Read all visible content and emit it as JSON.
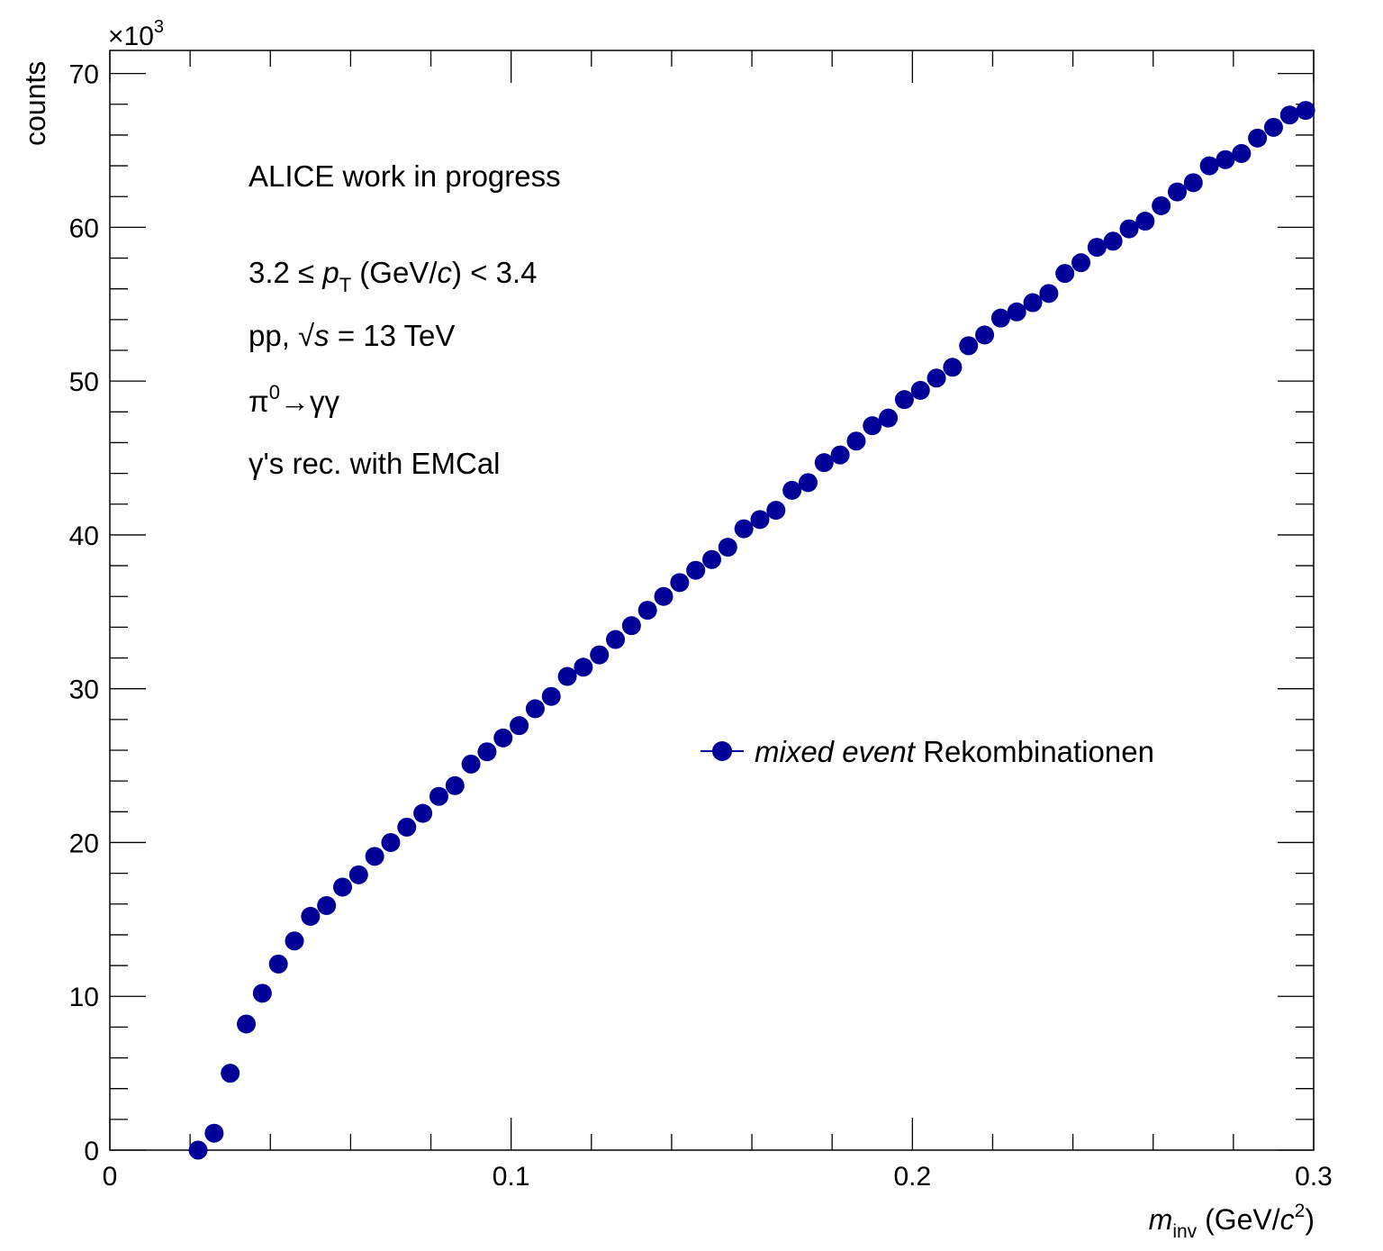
{
  "chart_data": {
    "type": "scatter",
    "xlabel": {
      "base": "m",
      "sub": "inv",
      "unit_open": " (GeV/",
      "unit_c": "c",
      "unit_exp": "2",
      "unit_close": ")"
    },
    "ylabel": "counts",
    "y_multiplier": {
      "times": "×10",
      "exp": "3"
    },
    "xlim": [
      0,
      0.3
    ],
    "ylim": [
      0,
      71.5
    ],
    "x_ticks": [
      "0",
      "0.1",
      "0.2",
      "0.3"
    ],
    "y_ticks": [
      "0",
      "10",
      "20",
      "30",
      "40",
      "50",
      "60",
      "70"
    ],
    "grid": false,
    "marker_color": "#000099",
    "annotations": {
      "line1": "ALICE work in progress",
      "pt": {
        "left": "3.2 ≤ ",
        "p": "p",
        "sub": "T",
        "right": " (GeV/",
        "c": "c",
        "end": ") < 3.4"
      },
      "energy": {
        "left": "pp, ",
        "sqrt": "√",
        "s": "s",
        "right": " = 13 TeV"
      },
      "decay": {
        "pi": "π",
        "sup": "0",
        "rest": "→γγ"
      },
      "line5": "γ's rec. with EMCal"
    },
    "legend": {
      "placement": "right-middle",
      "italic": "mixed event",
      "normal": " Rekombinationen"
    },
    "series": [
      {
        "x": [
          0.022,
          0.026,
          0.03,
          0.034,
          0.038,
          0.042,
          0.046,
          0.05,
          0.054,
          0.058,
          0.062,
          0.066,
          0.07,
          0.074,
          0.078,
          0.082,
          0.086,
          0.09,
          0.094,
          0.098,
          0.102,
          0.106,
          0.11,
          0.114,
          0.118,
          0.122,
          0.126,
          0.13,
          0.134,
          0.138,
          0.142,
          0.146,
          0.15,
          0.154,
          0.158,
          0.162,
          0.166,
          0.17,
          0.174,
          0.178,
          0.182,
          0.186,
          0.19,
          0.194,
          0.198,
          0.202,
          0.206,
          0.21,
          0.214,
          0.218,
          0.222,
          0.226,
          0.23,
          0.234,
          0.238,
          0.242,
          0.246,
          0.25,
          0.254,
          0.258,
          0.262,
          0.266,
          0.27,
          0.274,
          0.278,
          0.282,
          0.286,
          0.29,
          0.294,
          0.298
        ],
        "y": [
          0.0,
          1.1,
          5.0,
          8.2,
          10.2,
          12.1,
          13.6,
          15.2,
          15.9,
          17.1,
          17.9,
          19.1,
          20.0,
          21.0,
          21.9,
          23.0,
          23.7,
          25.1,
          25.9,
          26.8,
          27.6,
          28.7,
          29.5,
          30.8,
          31.4,
          32.2,
          33.2,
          34.1,
          35.1,
          36.0,
          36.9,
          37.7,
          38.4,
          39.2,
          40.4,
          41.0,
          41.6,
          42.9,
          43.4,
          44.7,
          45.2,
          46.1,
          47.1,
          47.6,
          48.8,
          49.4,
          50.2,
          50.9,
          52.3,
          53.0,
          54.1,
          54.5,
          55.1,
          55.7,
          57.0,
          57.7,
          58.7,
          59.1,
          59.9,
          60.4,
          61.4,
          62.3,
          62.9,
          64.0,
          64.4,
          64.8,
          65.8,
          66.5,
          67.3,
          67.6
        ]
      }
    ]
  }
}
